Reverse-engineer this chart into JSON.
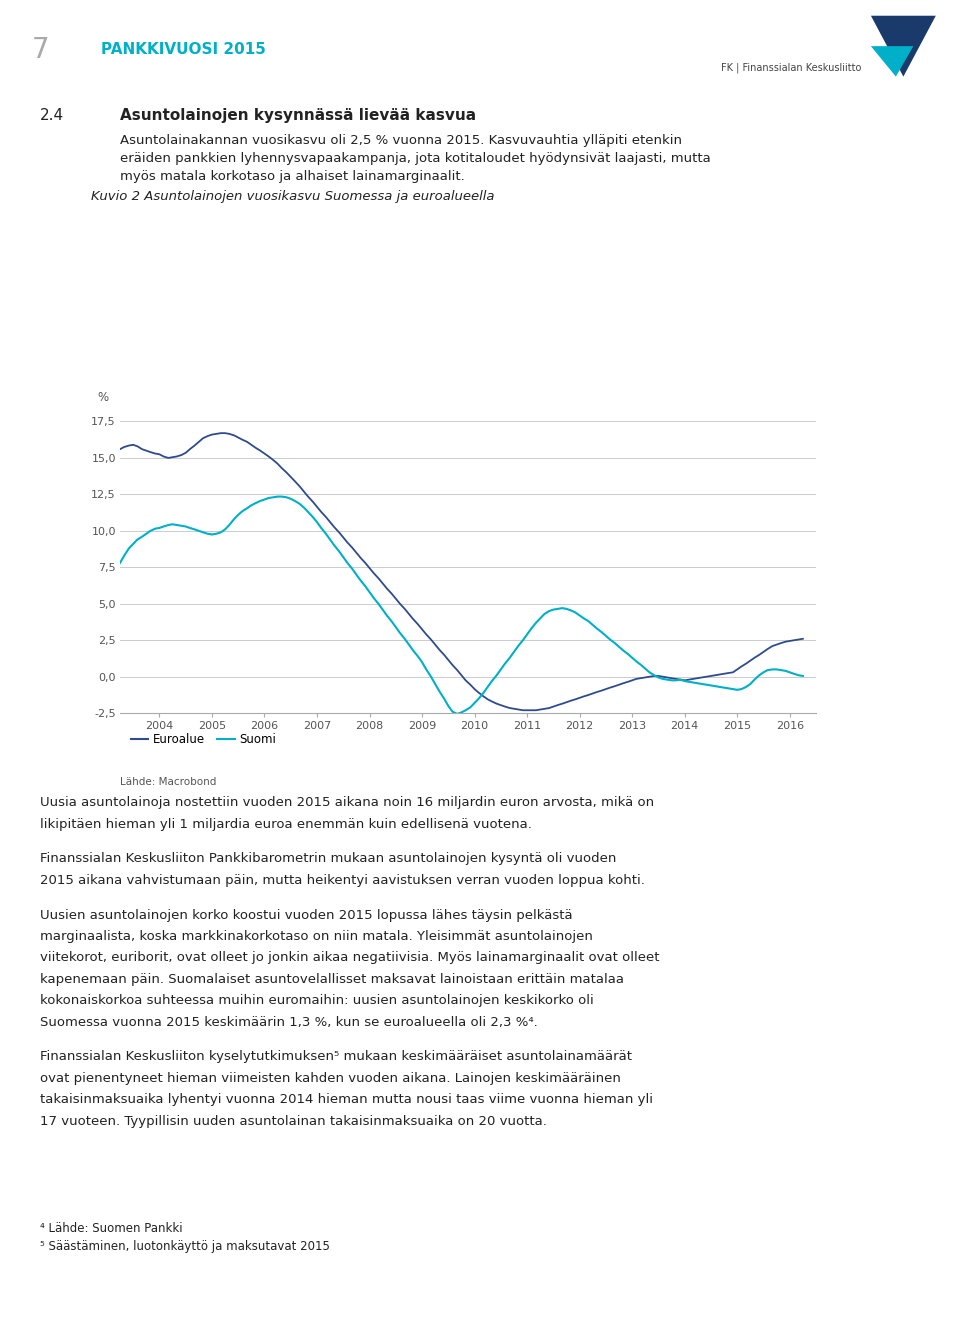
{
  "title": "Kuvio 2 Asuntolainojen vuosikasvu Suomessa ja euroalueella",
  "ylabel": "%",
  "source_label": "Lähde: Macrobond",
  "legend_euroalue": "Euroalue",
  "legend_suomi": "Suomi",
  "euroalue_color": "#2d4b8e",
  "suomi_color": "#00b0c8",
  "background_color": "#ffffff",
  "grid_color": "#cccccc",
  "ylim": [
    -2.5,
    17.5
  ],
  "yticks": [
    -2.5,
    0.0,
    2.5,
    5.0,
    7.5,
    10.0,
    12.5,
    15.0,
    17.5
  ],
  "ytick_labels": [
    "-2,5",
    "0,0",
    "2,5",
    "5,0",
    "7,5",
    "10,0",
    "12,5",
    "15,0",
    "17,5"
  ],
  "x_start_year": 2003.25,
  "x_end_year": 2016.5,
  "x_tick_years": [
    2004,
    2005,
    2006,
    2007,
    2008,
    2009,
    2010,
    2011,
    2012,
    2013,
    2014,
    2015,
    2016
  ],
  "euroalue_x": [
    2003.25,
    2003.33,
    2003.42,
    2003.5,
    2003.58,
    2003.67,
    2003.75,
    2003.83,
    2003.92,
    2004.0,
    2004.08,
    2004.17,
    2004.25,
    2004.33,
    2004.42,
    2004.5,
    2004.58,
    2004.67,
    2004.75,
    2004.83,
    2004.92,
    2005.0,
    2005.08,
    2005.17,
    2005.25,
    2005.33,
    2005.42,
    2005.5,
    2005.58,
    2005.67,
    2005.75,
    2005.83,
    2005.92,
    2006.0,
    2006.08,
    2006.17,
    2006.25,
    2006.33,
    2006.42,
    2006.5,
    2006.58,
    2006.67,
    2006.75,
    2006.83,
    2006.92,
    2007.0,
    2007.08,
    2007.17,
    2007.25,
    2007.33,
    2007.42,
    2007.5,
    2007.58,
    2007.67,
    2007.75,
    2007.83,
    2007.92,
    2008.0,
    2008.08,
    2008.17,
    2008.25,
    2008.33,
    2008.42,
    2008.5,
    2008.58,
    2008.67,
    2008.75,
    2008.83,
    2008.92,
    2009.0,
    2009.08,
    2009.17,
    2009.25,
    2009.33,
    2009.42,
    2009.5,
    2009.58,
    2009.67,
    2009.75,
    2009.83,
    2009.92,
    2010.0,
    2010.08,
    2010.17,
    2010.25,
    2010.33,
    2010.42,
    2010.5,
    2010.58,
    2010.67,
    2010.75,
    2010.83,
    2010.92,
    2011.0,
    2011.08,
    2011.17,
    2011.25,
    2011.33,
    2011.42,
    2011.5,
    2011.58,
    2011.67,
    2011.75,
    2011.83,
    2011.92,
    2012.0,
    2012.08,
    2012.17,
    2012.25,
    2012.33,
    2012.42,
    2012.5,
    2012.58,
    2012.67,
    2012.75,
    2012.83,
    2012.92,
    2013.0,
    2013.08,
    2013.17,
    2013.25,
    2013.33,
    2013.42,
    2013.5,
    2013.58,
    2013.67,
    2013.75,
    2013.83,
    2013.92,
    2014.0,
    2014.08,
    2014.17,
    2014.25,
    2014.33,
    2014.42,
    2014.5,
    2014.58,
    2014.67,
    2014.75,
    2014.83,
    2014.92,
    2015.0,
    2015.08,
    2015.17,
    2015.25,
    2015.33,
    2015.42,
    2015.5,
    2015.58,
    2015.67,
    2015.75,
    2015.83,
    2015.92,
    2016.0,
    2016.08,
    2016.17,
    2016.25
  ],
  "euroalue_y": [
    15.6,
    15.75,
    15.85,
    15.9,
    15.8,
    15.6,
    15.5,
    15.4,
    15.3,
    15.25,
    15.1,
    15.0,
    15.05,
    15.1,
    15.2,
    15.35,
    15.6,
    15.85,
    16.1,
    16.35,
    16.5,
    16.6,
    16.65,
    16.7,
    16.7,
    16.65,
    16.55,
    16.4,
    16.25,
    16.1,
    15.9,
    15.7,
    15.5,
    15.3,
    15.1,
    14.85,
    14.6,
    14.3,
    14.0,
    13.7,
    13.4,
    13.05,
    12.7,
    12.35,
    12.0,
    11.65,
    11.3,
    10.95,
    10.6,
    10.25,
    9.9,
    9.55,
    9.2,
    8.85,
    8.5,
    8.15,
    7.8,
    7.45,
    7.1,
    6.75,
    6.4,
    6.05,
    5.7,
    5.35,
    5.0,
    4.65,
    4.3,
    3.95,
    3.6,
    3.25,
    2.9,
    2.55,
    2.2,
    1.85,
    1.5,
    1.15,
    0.8,
    0.45,
    0.1,
    -0.25,
    -0.55,
    -0.85,
    -1.1,
    -1.35,
    -1.55,
    -1.7,
    -1.85,
    -1.95,
    -2.05,
    -2.15,
    -2.2,
    -2.25,
    -2.3,
    -2.3,
    -2.3,
    -2.3,
    -2.25,
    -2.2,
    -2.15,
    -2.05,
    -1.95,
    -1.85,
    -1.75,
    -1.65,
    -1.55,
    -1.45,
    -1.35,
    -1.25,
    -1.15,
    -1.05,
    -0.95,
    -0.85,
    -0.75,
    -0.65,
    -0.55,
    -0.45,
    -0.35,
    -0.25,
    -0.15,
    -0.1,
    -0.05,
    0.0,
    0.05,
    0.05,
    0.0,
    -0.05,
    -0.1,
    -0.15,
    -0.2,
    -0.25,
    -0.2,
    -0.15,
    -0.1,
    -0.05,
    0.0,
    0.05,
    0.1,
    0.15,
    0.2,
    0.25,
    0.3,
    0.5,
    0.7,
    0.9,
    1.1,
    1.3,
    1.5,
    1.7,
    1.9,
    2.1,
    2.2,
    2.3,
    2.4,
    2.45,
    2.5,
    2.55,
    2.6
  ],
  "suomi_x": [
    2003.25,
    2003.33,
    2003.42,
    2003.5,
    2003.58,
    2003.67,
    2003.75,
    2003.83,
    2003.92,
    2004.0,
    2004.08,
    2004.17,
    2004.25,
    2004.33,
    2004.42,
    2004.5,
    2004.58,
    2004.67,
    2004.75,
    2004.83,
    2004.92,
    2005.0,
    2005.08,
    2005.17,
    2005.25,
    2005.33,
    2005.42,
    2005.5,
    2005.58,
    2005.67,
    2005.75,
    2005.83,
    2005.92,
    2006.0,
    2006.08,
    2006.17,
    2006.25,
    2006.33,
    2006.42,
    2006.5,
    2006.58,
    2006.67,
    2006.75,
    2006.83,
    2006.92,
    2007.0,
    2007.08,
    2007.17,
    2007.25,
    2007.33,
    2007.42,
    2007.5,
    2007.58,
    2007.67,
    2007.75,
    2007.83,
    2007.92,
    2008.0,
    2008.08,
    2008.17,
    2008.25,
    2008.33,
    2008.42,
    2008.5,
    2008.58,
    2008.67,
    2008.75,
    2008.83,
    2008.92,
    2009.0,
    2009.08,
    2009.17,
    2009.25,
    2009.33,
    2009.42,
    2009.5,
    2009.58,
    2009.67,
    2009.75,
    2009.83,
    2009.92,
    2010.0,
    2010.08,
    2010.17,
    2010.25,
    2010.33,
    2010.42,
    2010.5,
    2010.58,
    2010.67,
    2010.75,
    2010.83,
    2010.92,
    2011.0,
    2011.08,
    2011.17,
    2011.25,
    2011.33,
    2011.42,
    2011.5,
    2011.58,
    2011.67,
    2011.75,
    2011.83,
    2011.92,
    2012.0,
    2012.08,
    2012.17,
    2012.25,
    2012.33,
    2012.42,
    2012.5,
    2012.58,
    2012.67,
    2012.75,
    2012.83,
    2012.92,
    2013.0,
    2013.08,
    2013.17,
    2013.25,
    2013.33,
    2013.42,
    2013.5,
    2013.58,
    2013.67,
    2013.75,
    2013.83,
    2013.92,
    2014.0,
    2014.08,
    2014.17,
    2014.25,
    2014.33,
    2014.42,
    2014.5,
    2014.58,
    2014.67,
    2014.75,
    2014.83,
    2014.92,
    2015.0,
    2015.08,
    2015.17,
    2015.25,
    2015.33,
    2015.42,
    2015.5,
    2015.58,
    2015.67,
    2015.75,
    2015.83,
    2015.92,
    2016.0,
    2016.08,
    2016.17,
    2016.25
  ],
  "suomi_y": [
    7.8,
    8.3,
    8.8,
    9.1,
    9.4,
    9.6,
    9.8,
    10.0,
    10.15,
    10.2,
    10.3,
    10.4,
    10.45,
    10.4,
    10.35,
    10.3,
    10.2,
    10.1,
    10.0,
    9.9,
    9.8,
    9.75,
    9.8,
    9.9,
    10.1,
    10.4,
    10.8,
    11.1,
    11.35,
    11.55,
    11.75,
    11.9,
    12.05,
    12.15,
    12.25,
    12.3,
    12.35,
    12.35,
    12.3,
    12.2,
    12.05,
    11.85,
    11.6,
    11.3,
    10.95,
    10.6,
    10.2,
    9.8,
    9.4,
    9.0,
    8.6,
    8.2,
    7.8,
    7.4,
    7.0,
    6.6,
    6.2,
    5.8,
    5.4,
    5.0,
    4.6,
    4.2,
    3.8,
    3.4,
    3.0,
    2.6,
    2.2,
    1.8,
    1.4,
    1.0,
    0.5,
    0.0,
    -0.5,
    -1.0,
    -1.5,
    -2.0,
    -2.4,
    -2.55,
    -2.45,
    -2.3,
    -2.1,
    -1.8,
    -1.5,
    -1.1,
    -0.7,
    -0.3,
    0.1,
    0.5,
    0.9,
    1.3,
    1.7,
    2.1,
    2.5,
    2.9,
    3.3,
    3.7,
    4.0,
    4.3,
    4.5,
    4.6,
    4.65,
    4.7,
    4.65,
    4.55,
    4.4,
    4.2,
    4.0,
    3.8,
    3.55,
    3.3,
    3.05,
    2.8,
    2.55,
    2.3,
    2.05,
    1.8,
    1.55,
    1.3,
    1.05,
    0.8,
    0.55,
    0.3,
    0.1,
    -0.05,
    -0.15,
    -0.2,
    -0.25,
    -0.25,
    -0.2,
    -0.3,
    -0.35,
    -0.4,
    -0.45,
    -0.5,
    -0.55,
    -0.6,
    -0.65,
    -0.7,
    -0.75,
    -0.8,
    -0.85,
    -0.9,
    -0.85,
    -0.7,
    -0.5,
    -0.2,
    0.1,
    0.3,
    0.45,
    0.5,
    0.5,
    0.45,
    0.4,
    0.3,
    0.2,
    0.1,
    0.05
  ]
}
